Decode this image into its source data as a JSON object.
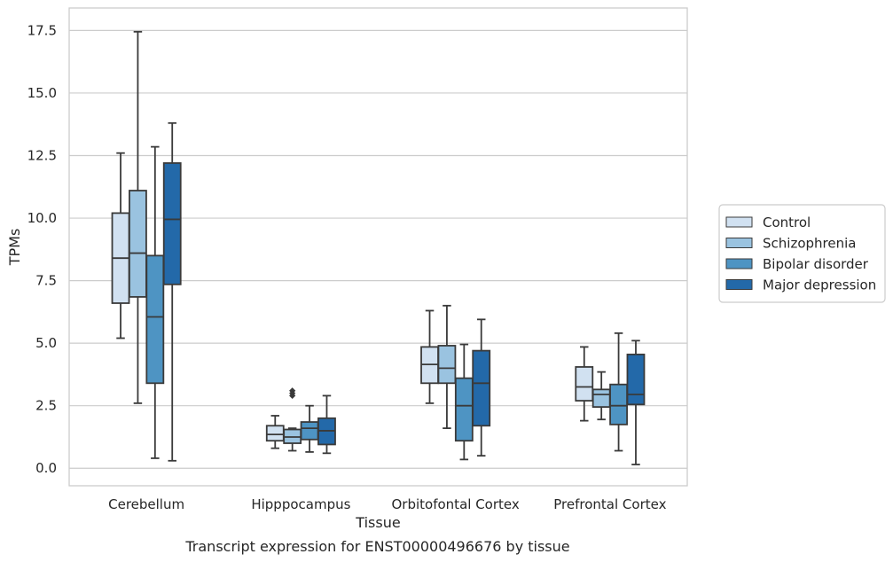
{
  "chart_data": {
    "type": "boxplot",
    "caption": "Transcript expression for ENST00000496676 by tissue",
    "xlabel": "Tissue",
    "ylabel": "TPMs",
    "ylim": [
      -0.7,
      18.4
    ],
    "yticks": [
      0.0,
      2.5,
      5.0,
      7.5,
      10.0,
      12.5,
      15.0,
      17.5
    ],
    "ytick_labels": [
      "0.0",
      "2.5",
      "5.0",
      "7.5",
      "10.0",
      "12.5",
      "15.0",
      "17.5"
    ],
    "grid": "horizontal",
    "legend_position": "right",
    "categories": [
      "Cerebellum",
      "Hipppocampus",
      "Orbitofontal Cortex",
      "Prefrontal Cortex"
    ],
    "series": [
      {
        "name": "Control",
        "color": "#d1e1f1",
        "boxes": [
          {
            "whislo": 5.2,
            "q1": 6.6,
            "med": 8.4,
            "q3": 10.2,
            "whishi": 12.6,
            "fliers": []
          },
          {
            "whislo": 0.8,
            "q1": 1.1,
            "med": 1.35,
            "q3": 1.7,
            "whishi": 2.1,
            "fliers": []
          },
          {
            "whislo": 2.6,
            "q1": 3.4,
            "med": 4.15,
            "q3": 4.85,
            "whishi": 6.3,
            "fliers": []
          },
          {
            "whislo": 1.9,
            "q1": 2.7,
            "med": 3.25,
            "q3": 4.05,
            "whishi": 4.85,
            "fliers": []
          }
        ]
      },
      {
        "name": "Schizophrenia",
        "color": "#9ac3e0",
        "boxes": [
          {
            "whislo": 2.6,
            "q1": 6.85,
            "med": 8.6,
            "q3": 11.1,
            "whishi": 17.45,
            "fliers": []
          },
          {
            "whislo": 0.7,
            "q1": 1.0,
            "med": 1.25,
            "q3": 1.55,
            "whishi": 1.6,
            "fliers": [
              2.9,
              3.0,
              3.1
            ]
          },
          {
            "whislo": 1.6,
            "q1": 3.4,
            "med": 4.0,
            "q3": 4.9,
            "whishi": 6.5,
            "fliers": []
          },
          {
            "whislo": 1.95,
            "q1": 2.45,
            "med": 2.95,
            "q3": 3.15,
            "whishi": 3.85,
            "fliers": []
          }
        ]
      },
      {
        "name": "Bipolar disorder",
        "color": "#4e94c3",
        "boxes": [
          {
            "whislo": 0.4,
            "q1": 3.4,
            "med": 6.05,
            "q3": 8.5,
            "whishi": 12.85,
            "fliers": []
          },
          {
            "whislo": 0.65,
            "q1": 1.15,
            "med": 1.6,
            "q3": 1.85,
            "whishi": 2.5,
            "fliers": []
          },
          {
            "whislo": 0.35,
            "q1": 1.1,
            "med": 2.5,
            "q3": 3.6,
            "whishi": 4.95,
            "fliers": []
          },
          {
            "whislo": 0.7,
            "q1": 1.75,
            "med": 2.5,
            "q3": 3.35,
            "whishi": 5.4,
            "fliers": []
          }
        ]
      },
      {
        "name": "Major depression",
        "color": "#2369a9",
        "boxes": [
          {
            "whislo": 0.3,
            "q1": 7.35,
            "med": 9.95,
            "q3": 12.2,
            "whishi": 13.8,
            "fliers": []
          },
          {
            "whislo": 0.6,
            "q1": 0.95,
            "med": 1.5,
            "q3": 2.0,
            "whishi": 2.9,
            "fliers": []
          },
          {
            "whislo": 0.5,
            "q1": 1.7,
            "med": 3.4,
            "q3": 4.7,
            "whishi": 5.95,
            "fliers": []
          },
          {
            "whislo": 0.15,
            "q1": 2.55,
            "med": 2.95,
            "q3": 4.55,
            "whishi": 5.1,
            "fliers": []
          }
        ]
      }
    ]
  }
}
